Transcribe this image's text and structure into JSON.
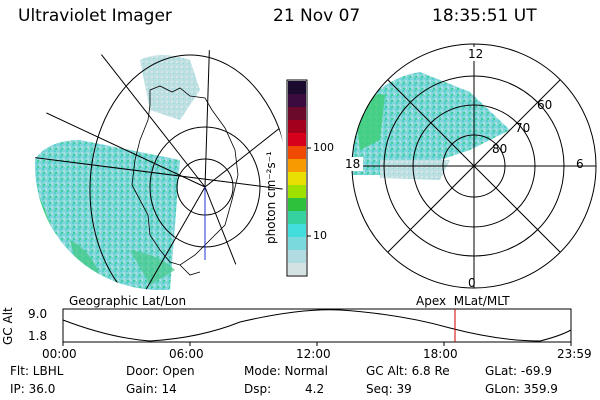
{
  "header": {
    "instrument": "Ultraviolet Imager",
    "date": "21 Nov 07",
    "time": "18:35:51 UT"
  },
  "colorbar": {
    "unit_label": "photon cm⁻²s⁻¹",
    "ticks": [
      "100",
      "10"
    ],
    "colors": [
      "#1a0a2e",
      "#3b0a3e",
      "#6b0a2a",
      "#a3001e",
      "#d6001c",
      "#f04a00",
      "#f59a00",
      "#e8e000",
      "#9ee000",
      "#2ec23c",
      "#35d2a0",
      "#42dede",
      "#7ad9dc",
      "#b0dbe0",
      "#d5e2e4"
    ]
  },
  "left_map": {
    "label": "Geographic Lat/Lon"
  },
  "right_polar": {
    "label": "Apex  MLat/MLT",
    "mlt_labels": {
      "top": "12",
      "left": "18",
      "right": "6",
      "bottom": "0"
    },
    "lat_labels": [
      "60",
      "70",
      "80"
    ]
  },
  "altitude_plot": {
    "ylabel": "GC Alt",
    "yticks": [
      "9.0",
      "1.8"
    ],
    "xticks": [
      "00:00",
      "06:00",
      "12:00",
      "18:00",
      "23:59"
    ],
    "current_time_marker": "18:35",
    "marker_color": "#cc0000"
  },
  "status": {
    "flt": "Flt: LBHL",
    "ip": "IP: 36.0",
    "door": "Door: Open",
    "gain": "Gain: 14",
    "mode": "Mode: Normal",
    "dsp_label": "Dsp:",
    "dsp_value": "4.2",
    "gc_alt": "GC Alt: 6.8 Re",
    "seq": "Seq: 39",
    "glat": "GLat: -69.9",
    "glon": "GLon: 359.9"
  }
}
